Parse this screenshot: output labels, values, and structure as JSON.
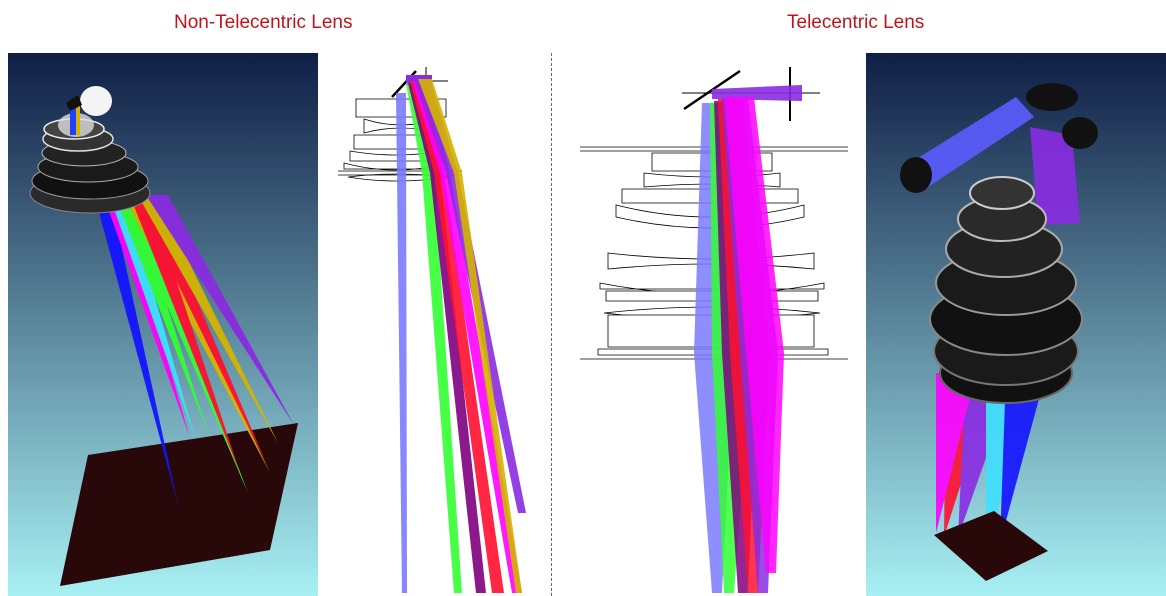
{
  "titles": {
    "left": "Non-Telecentric Lens",
    "right": "Telecentric Lens"
  },
  "colors": {
    "title": "#c0141a",
    "bg_top": "#0f1e45",
    "bg_bottom": "#a8f0f4",
    "image_plane": "#280808",
    "ray_blue": "#1414ff",
    "ray_violet": "#8a2be2",
    "ray_magenta": "#ff00ff",
    "ray_red": "#ff1030",
    "ray_green": "#33ff33",
    "ray_yellow": "#d4b400",
    "ray_cyan": "#40e0ff",
    "ray_lavender": "#7a7aff"
  }
}
